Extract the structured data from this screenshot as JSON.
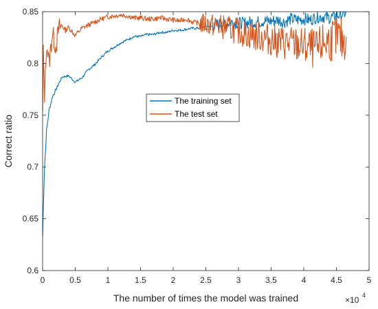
{
  "chart_data": {
    "type": "line",
    "xlabel": "The number of times the model was trained",
    "ylabel": "Correct ratio",
    "x_exponent_label": "×10",
    "x_exponent_power": "4",
    "xlim": [
      0,
      50000
    ],
    "ylim": [
      0.6,
      0.85
    ],
    "x_ticks": [
      0,
      5000,
      10000,
      15000,
      20000,
      25000,
      30000,
      35000,
      40000,
      45000,
      50000
    ],
    "x_tick_labels": [
      "0",
      "0.5",
      "1",
      "1.5",
      "2",
      "2.5",
      "3",
      "3.5",
      "4",
      "4.5",
      "5"
    ],
    "y_ticks": [
      0.6,
      0.65,
      0.7,
      0.75,
      0.8,
      0.85
    ],
    "y_tick_labels": [
      "0.6",
      "0.65",
      "0.7",
      "0.75",
      "0.8",
      "0.85"
    ],
    "grid": false,
    "legend_position": "center",
    "series": [
      {
        "name": "The training set",
        "color": "#0072BD",
        "x": [
          0,
          100,
          300,
          600,
          1000,
          1500,
          2000,
          2500,
          3000,
          4000,
          5000,
          6000,
          7000,
          8000,
          9000,
          10000,
          11000,
          12000,
          13000,
          14000,
          15000,
          16000,
          17000,
          18000,
          19000,
          20000,
          21000,
          22000,
          23000,
          24000,
          25000,
          26000,
          27000,
          28000,
          29000,
          30000,
          31000,
          32000,
          33000,
          34000,
          35000,
          36000,
          37000,
          38000,
          39000,
          40000,
          41000,
          42000,
          43000,
          44000,
          45000,
          46000,
          46500
        ],
        "y": [
          0.633,
          0.66,
          0.7,
          0.735,
          0.755,
          0.768,
          0.774,
          0.781,
          0.787,
          0.788,
          0.782,
          0.786,
          0.794,
          0.799,
          0.806,
          0.812,
          0.816,
          0.82,
          0.823,
          0.826,
          0.826,
          0.828,
          0.828,
          0.83,
          0.83,
          0.832,
          0.832,
          0.833,
          0.834,
          0.834,
          0.836,
          0.836,
          0.838,
          0.838,
          0.84,
          0.839,
          0.839,
          0.84,
          0.84,
          0.841,
          0.841,
          0.842,
          0.84,
          0.843,
          0.842,
          0.843,
          0.842,
          0.845,
          0.845,
          0.844,
          0.846,
          0.848,
          0.849
        ]
      },
      {
        "name": "The test set",
        "color": "#D95319",
        "x": [
          0,
          100,
          300,
          600,
          1000,
          1500,
          2000,
          2500,
          3000,
          3500,
          4000,
          5000,
          6000,
          7000,
          8000,
          9000,
          10000,
          11000,
          12000,
          13000,
          14000,
          15000,
          16000,
          17000,
          18000,
          19000,
          20000,
          21000,
          22000,
          23000,
          24000,
          25000,
          26000,
          27000,
          28000,
          29000,
          30000,
          31000,
          32000,
          33000,
          34000,
          35000,
          36000,
          37000,
          38000,
          39000,
          40000,
          41000,
          42000,
          43000,
          44000,
          45000,
          46000,
          46500
        ],
        "y": [
          0.75,
          0.81,
          0.77,
          0.82,
          0.8,
          0.83,
          0.816,
          0.834,
          0.836,
          0.832,
          0.835,
          0.827,
          0.834,
          0.837,
          0.84,
          0.843,
          0.845,
          0.846,
          0.847,
          0.846,
          0.844,
          0.844,
          0.843,
          0.843,
          0.844,
          0.843,
          0.842,
          0.841,
          0.843,
          0.84,
          0.839,
          0.838,
          0.837,
          0.836,
          0.835,
          0.833,
          0.831,
          0.829,
          0.827,
          0.826,
          0.825,
          0.823,
          0.821,
          0.82,
          0.819,
          0.818,
          0.816,
          0.815,
          0.812,
          0.82,
          0.822,
          0.826,
          0.821,
          0.826
        ]
      }
    ]
  }
}
